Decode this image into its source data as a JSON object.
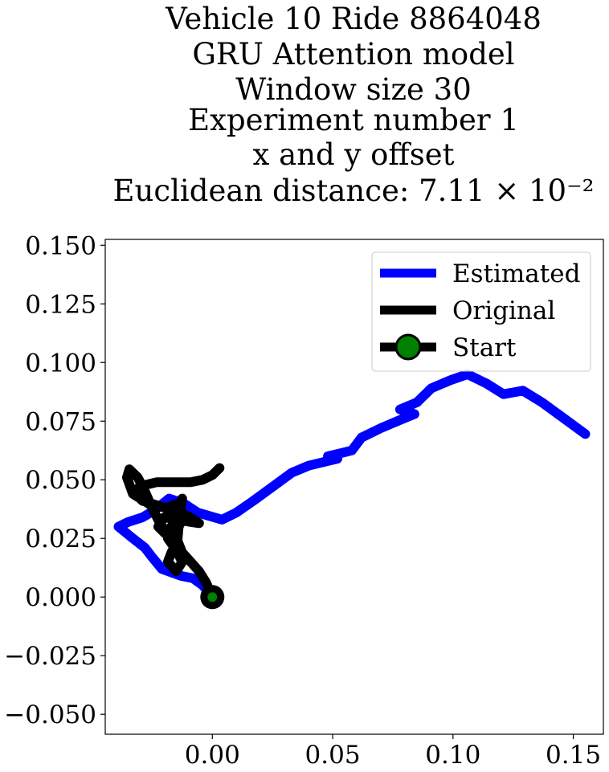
{
  "chart_data": {
    "type": "line",
    "title_lines": [
      "Vehicle 10 Ride 8864048",
      "GRU Attention model",
      "Window size 30",
      "Experiment number 1",
      "x and y offset",
      "Euclidean distance: 7.11 × 10⁻²"
    ],
    "xlabel": "",
    "ylabel": "",
    "xlim": [
      -0.0445,
      0.1625
    ],
    "ylim": [
      -0.0585,
      0.1525
    ],
    "xticks": [
      0.0,
      0.05,
      0.1,
      0.15
    ],
    "xtick_labels": [
      "0.00",
      "0.05",
      "0.10",
      "0.15"
    ],
    "yticks": [
      0.15,
      0.125,
      0.1,
      0.075,
      0.05,
      0.025,
      0.0,
      -0.025,
      -0.05
    ],
    "ytick_labels": [
      "0.150",
      "0.125",
      "0.100",
      "0.075",
      "0.050",
      "0.025",
      "0.000",
      "−0.025",
      "−0.050"
    ],
    "grid": false,
    "legend_position": "top-right",
    "series": [
      {
        "name": "Estimated",
        "color": "#0000ff",
        "points": [
          [
            0.0,
            0.0
          ],
          [
            -0.004,
            0.005
          ],
          [
            -0.008,
            0.008
          ],
          [
            -0.013,
            0.009
          ],
          [
            -0.021,
            0.012
          ],
          [
            -0.025,
            0.017
          ],
          [
            -0.028,
            0.021
          ],
          [
            -0.033,
            0.025
          ],
          [
            -0.039,
            0.03
          ],
          [
            -0.035,
            0.032
          ],
          [
            -0.029,
            0.034
          ],
          [
            -0.024,
            0.037
          ],
          [
            -0.018,
            0.042
          ],
          [
            -0.012,
            0.04
          ],
          [
            -0.006,
            0.036
          ],
          [
            0.004,
            0.033
          ],
          [
            0.01,
            0.036
          ],
          [
            0.017,
            0.041
          ],
          [
            0.025,
            0.047
          ],
          [
            0.033,
            0.053
          ],
          [
            0.04,
            0.056
          ],
          [
            0.046,
            0.0575
          ],
          [
            0.052,
            0.059
          ],
          [
            0.048,
            0.06
          ],
          [
            0.054,
            0.0615
          ],
          [
            0.058,
            0.0625
          ],
          [
            0.062,
            0.068
          ],
          [
            0.07,
            0.072
          ],
          [
            0.078,
            0.0755
          ],
          [
            0.084,
            0.078
          ],
          [
            0.078,
            0.08
          ],
          [
            0.085,
            0.083
          ],
          [
            0.091,
            0.089
          ],
          [
            0.099,
            0.0925
          ],
          [
            0.106,
            0.095
          ],
          [
            0.114,
            0.091
          ],
          [
            0.121,
            0.0865
          ],
          [
            0.129,
            0.088
          ],
          [
            0.137,
            0.083
          ],
          [
            0.145,
            0.077
          ],
          [
            0.155,
            0.0695
          ]
        ]
      },
      {
        "name": "Original",
        "color": "#000000",
        "points": [
          [
            0.0,
            0.0
          ],
          [
            -0.0025,
            0.006
          ],
          [
            -0.0055,
            0.011
          ],
          [
            -0.009,
            0.015
          ],
          [
            -0.0125,
            0.019
          ],
          [
            -0.0145,
            0.024
          ],
          [
            -0.014,
            0.03
          ],
          [
            -0.012,
            0.034
          ],
          [
            -0.014,
            0.04
          ],
          [
            -0.019,
            0.038
          ],
          [
            -0.026,
            0.0395
          ],
          [
            -0.033,
            0.044
          ],
          [
            -0.0355,
            0.051
          ],
          [
            -0.0345,
            0.0545
          ],
          [
            -0.031,
            0.051
          ],
          [
            -0.028,
            0.045
          ],
          [
            -0.025,
            0.038
          ],
          [
            -0.0215,
            0.031
          ],
          [
            -0.018,
            0.026
          ],
          [
            -0.015,
            0.023
          ],
          [
            -0.017,
            0.019
          ],
          [
            -0.0185,
            0.015
          ],
          [
            -0.015,
            0.011
          ],
          [
            -0.0125,
            0.015
          ],
          [
            -0.015,
            0.02
          ],
          [
            -0.0185,
            0.025
          ],
          [
            -0.0165,
            0.03
          ],
          [
            -0.0135,
            0.036
          ],
          [
            -0.0125,
            0.042
          ],
          [
            -0.0155,
            0.032
          ],
          [
            -0.0195,
            0.027
          ],
          [
            -0.0225,
            0.03
          ],
          [
            -0.02,
            0.034
          ],
          [
            -0.014,
            0.033
          ],
          [
            -0.009,
            0.032
          ],
          [
            -0.0055,
            0.0315
          ],
          [
            -0.01,
            0.0345
          ],
          [
            -0.0165,
            0.037
          ],
          [
            -0.0225,
            0.039
          ],
          [
            -0.029,
            0.041
          ],
          [
            -0.033,
            0.045
          ],
          [
            -0.029,
            0.0475
          ],
          [
            -0.023,
            0.049
          ],
          [
            -0.016,
            0.049
          ],
          [
            -0.009,
            0.049
          ],
          [
            -0.004,
            0.05
          ],
          [
            0.0,
            0.052
          ],
          [
            0.003,
            0.055
          ]
        ]
      }
    ],
    "start_marker": {
      "name": "Start",
      "point": [
        0.0,
        0.0
      ],
      "face_color": "#008000",
      "edge_color": "#000000"
    }
  }
}
